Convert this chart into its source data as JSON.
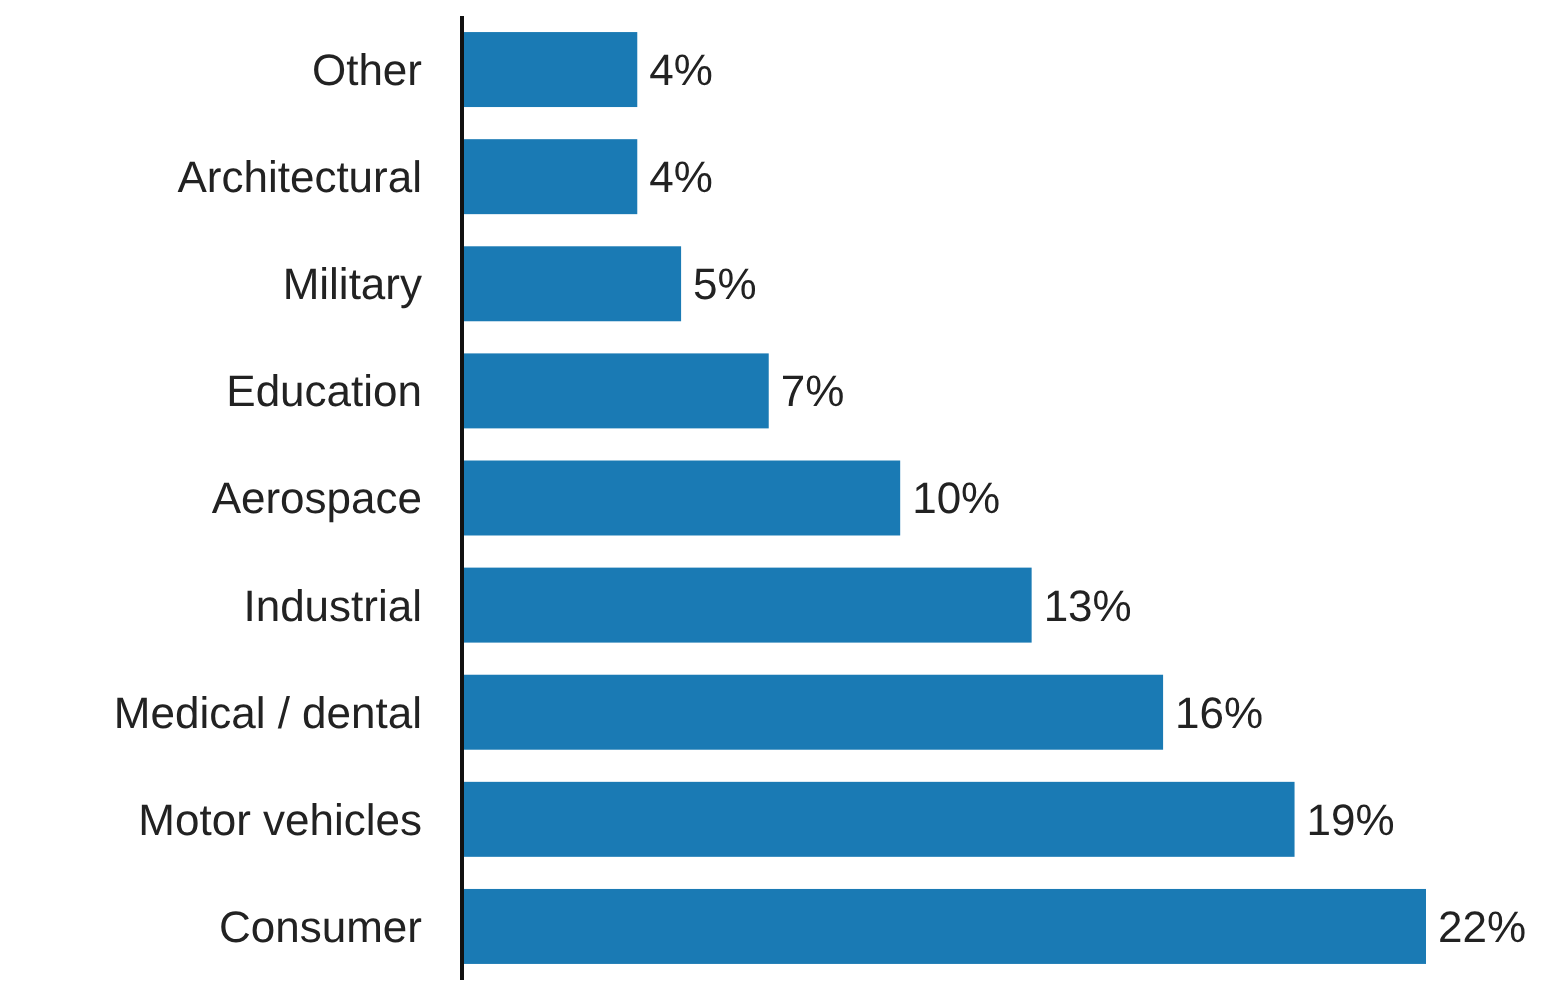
{
  "chart_data": {
    "type": "bar",
    "orientation": "horizontal",
    "categories": [
      "Other",
      "Architectural",
      "Military",
      "Education",
      "Aerospace",
      "Industrial",
      "Medical / dental",
      "Motor vehicles",
      "Consumer"
    ],
    "values": [
      4,
      4,
      5,
      7,
      10,
      13,
      16,
      19,
      22
    ],
    "value_labels": [
      "4%",
      "4%",
      "5%",
      "7%",
      "10%",
      "13%",
      "16%",
      "19%",
      "22%"
    ],
    "color": "#1a7ab4",
    "xlim": [
      0,
      22
    ]
  }
}
